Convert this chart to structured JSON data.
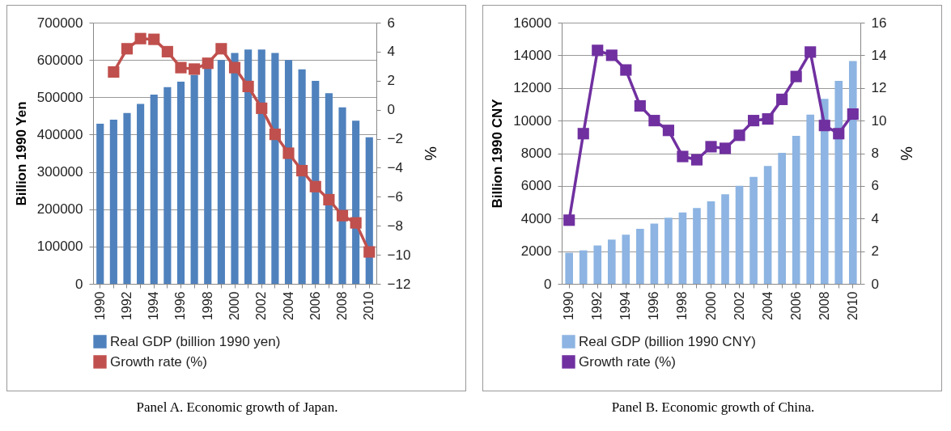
{
  "chart_data": [
    {
      "type": "bar",
      "ylabel": "Billion 1990 Yen",
      "y2label": "%",
      "categories": [
        "1990",
        null,
        "1992",
        null,
        "1994",
        null,
        "1996",
        null,
        "1998",
        null,
        "2000",
        null,
        "2002",
        null,
        "2004",
        null,
        "2006",
        null,
        "2008",
        null,
        "2010"
      ],
      "series": [
        {
          "name": "Real GDP (billion 1990 yen)",
          "color": "#4f81bd",
          "values": [
            429000,
            440000,
            458000,
            482000,
            507000,
            527000,
            542000,
            560000,
            579000,
            600000,
            619000,
            628000,
            628000,
            619000,
            600000,
            575000,
            544000,
            511000,
            473000,
            437000,
            393000
          ]
        },
        {
          "name": "Growth rate (%)",
          "type": "line",
          "axis": "y2",
          "color": "#c0504d",
          "values": [
            null,
            2.6,
            4.2,
            4.9,
            4.85,
            4.0,
            2.9,
            2.8,
            3.2,
            4.2,
            2.9,
            1.6,
            0.1,
            -1.7,
            -3.0,
            -4.2,
            -5.3,
            -6.2,
            -7.3,
            -7.8,
            -9.8
          ]
        }
      ],
      "ylim": [
        0,
        700000
      ],
      "yticks": [
        0,
        100000,
        200000,
        300000,
        400000,
        500000,
        600000,
        700000
      ],
      "y2lim": [
        -12,
        6
      ],
      "y2ticks": [
        -12,
        -10,
        -8,
        -6,
        -4,
        -2,
        0,
        2,
        4,
        6
      ],
      "grid": "y",
      "legend": "bottom",
      "marker": "square",
      "annotations": [
        "Panel A. Economic growth of Japan."
      ]
    },
    {
      "type": "bar",
      "ylabel": "Billion 1990 CNY",
      "y2label": "%",
      "categories": [
        "1990",
        null,
        "1992",
        null,
        "1994",
        null,
        "1996",
        null,
        "1998",
        null,
        "2000",
        null,
        "2002",
        null,
        "2004",
        null,
        "2006",
        null,
        "2008",
        null,
        "2010"
      ],
      "series": [
        {
          "name": "Real GDP (billion 1990 CNY)",
          "color": "#8db4e2",
          "values": [
            1900,
            2050,
            2350,
            2710,
            3010,
            3370,
            3690,
            4050,
            4370,
            4640,
            5050,
            5480,
            6010,
            6550,
            7220,
            8030,
            9060,
            10360,
            11330,
            12430,
            13650
          ]
        },
        {
          "name": "Growth rate (%)",
          "type": "line",
          "axis": "y2",
          "color": "#7030a0",
          "values": [
            3.9,
            9.2,
            14.3,
            14.0,
            13.1,
            10.9,
            10.0,
            9.4,
            7.8,
            7.6,
            8.4,
            8.3,
            9.1,
            10.0,
            10.1,
            11.3,
            12.7,
            14.2,
            9.7,
            9.2,
            10.4
          ]
        }
      ],
      "ylim": [
        0,
        16000
      ],
      "yticks": [
        0,
        2000,
        4000,
        6000,
        8000,
        10000,
        12000,
        14000,
        16000
      ],
      "y2lim": [
        0,
        16
      ],
      "y2ticks": [
        0,
        2,
        4,
        6,
        8,
        10,
        12,
        14,
        16
      ],
      "grid": "y",
      "legend": "bottom",
      "marker": "square",
      "annotations": [
        "Panel B. Economic growth of China."
      ]
    }
  ]
}
